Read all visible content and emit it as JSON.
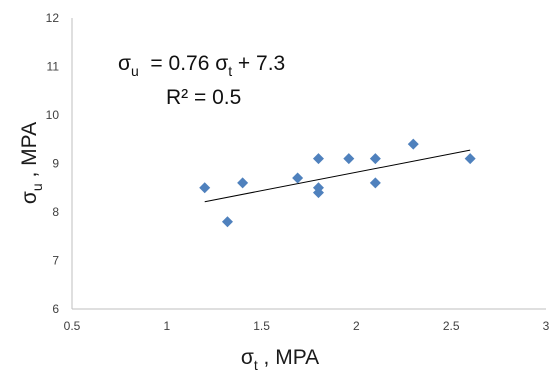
{
  "chart_data": {
    "type": "scatter",
    "title": "",
    "xlabel": {
      "main": "σ",
      "sub": "t",
      "suffix": " , MPA"
    },
    "ylabel": {
      "main": "σ",
      "sub": "u",
      "suffix": " , MPA"
    },
    "xlim": [
      0.5,
      3
    ],
    "ylim": [
      6,
      12
    ],
    "xticks": [
      0.5,
      1,
      1.5,
      2,
      2.5,
      3
    ],
    "xtick_labels": [
      "0.5",
      "1",
      "1.5",
      "2",
      "2.5",
      "3"
    ],
    "yticks": [
      6,
      7,
      8,
      9,
      10,
      11,
      12
    ],
    "ytick_labels": [
      "6",
      "7",
      "8",
      "9",
      "10",
      "11",
      "12"
    ],
    "grid": false,
    "legend": "none",
    "marker": "diamond",
    "marker_color": "#4F81BD",
    "trendline_color": "#000000",
    "points": [
      {
        "x": 1.2,
        "y": 8.5
      },
      {
        "x": 1.32,
        "y": 7.8
      },
      {
        "x": 1.4,
        "y": 8.6
      },
      {
        "x": 1.69,
        "y": 8.7
      },
      {
        "x": 1.8,
        "y": 8.4
      },
      {
        "x": 1.8,
        "y": 8.5
      },
      {
        "x": 1.8,
        "y": 9.1
      },
      {
        "x": 1.96,
        "y": 9.1
      },
      {
        "x": 2.1,
        "y": 8.6
      },
      {
        "x": 2.1,
        "y": 9.1
      },
      {
        "x": 2.3,
        "y": 9.4
      },
      {
        "x": 2.6,
        "y": 9.1
      }
    ],
    "trendline": {
      "slope": 0.76,
      "intercept": 7.3,
      "x_start": 1.2,
      "x_end": 2.6
    },
    "annotations": {
      "equation": {
        "lhs_main": "σ",
        "lhs_sub": "u",
        "mid": "  = 0.76 σ",
        "mid_sub": "t",
        "tail": " + 7.3"
      },
      "r2": "R² = 0.5"
    }
  }
}
